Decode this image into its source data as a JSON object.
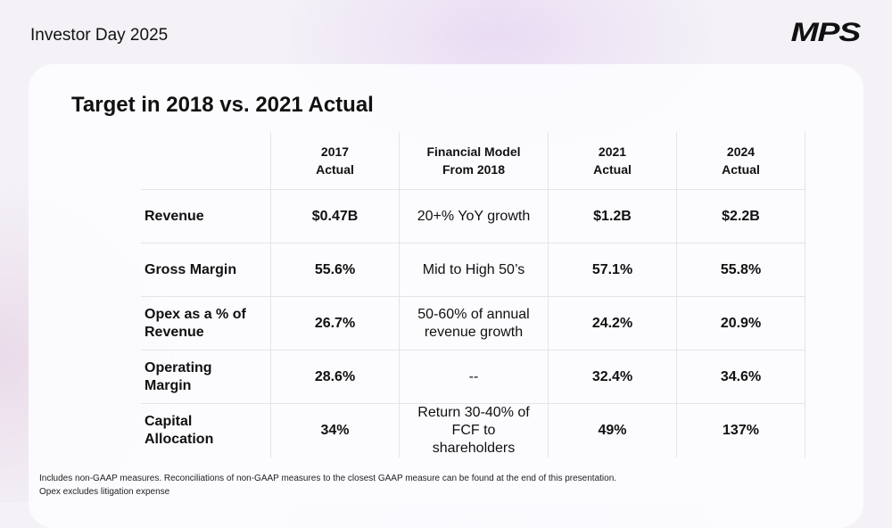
{
  "header": {
    "title": "Investor Day 2025",
    "logo": "MPS"
  },
  "slide": {
    "title": "Target in 2018 vs. 2021 Actual"
  },
  "table": {
    "columns": [
      "",
      "2017\nActual",
      "Financial Model\nFrom 2018",
      "2021\nActual",
      "2024\nActual"
    ],
    "rows": [
      [
        "Revenue",
        "$0.47B",
        "20+% YoY growth",
        "$1.2B",
        "$2.2B"
      ],
      [
        "Gross Margin",
        "55.6%",
        "Mid to High 50’s",
        "57.1%",
        "55.8%"
      ],
      [
        "Opex as a % of\nRevenue",
        "26.7%",
        "50-60% of annual\nrevenue growth",
        "24.2%",
        "20.9%"
      ],
      [
        "Operating\nMargin",
        "28.6%",
        "--",
        "32.4%",
        "34.6%"
      ],
      [
        "Capital\nAllocation",
        "34%",
        "Return 30-40% of\nFCF to\nshareholders",
        "49%",
        "137%"
      ]
    ]
  },
  "footnotes": [
    "Includes non-GAAP measures. Reconciliations of non-GAAP measures to the closest GAAP measure can be found at the end of this presentation.",
    "Opex excludes litigation expense"
  ]
}
